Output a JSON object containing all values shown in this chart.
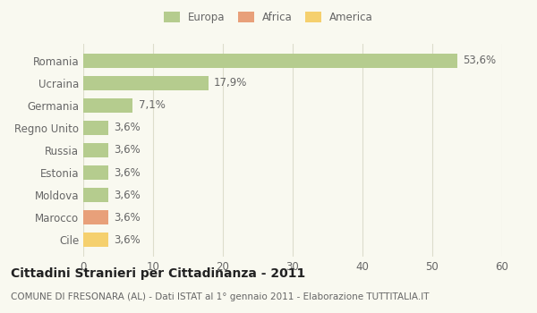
{
  "categories": [
    "Romania",
    "Ucraina",
    "Germania",
    "Regno Unito",
    "Russia",
    "Estonia",
    "Moldova",
    "Marocco",
    "Cile"
  ],
  "values": [
    53.6,
    17.9,
    7.1,
    3.6,
    3.6,
    3.6,
    3.6,
    3.6,
    3.6
  ],
  "labels": [
    "53,6%",
    "17,9%",
    "7,1%",
    "3,6%",
    "3,6%",
    "3,6%",
    "3,6%",
    "3,6%",
    "3,6%"
  ],
  "colors": [
    "#b5cc8e",
    "#b5cc8e",
    "#b5cc8e",
    "#b5cc8e",
    "#b5cc8e",
    "#b5cc8e",
    "#b5cc8e",
    "#e8a07a",
    "#f5d06e"
  ],
  "legend": [
    {
      "label": "Europa",
      "color": "#b5cc8e"
    },
    {
      "label": "Africa",
      "color": "#e8a07a"
    },
    {
      "label": "America",
      "color": "#f5d06e"
    }
  ],
  "xlim": [
    0,
    60
  ],
  "xticks": [
    0,
    10,
    20,
    30,
    40,
    50,
    60
  ],
  "title": "Cittadini Stranieri per Cittadinanza - 2011",
  "subtitle": "COMUNE DI FRESONARA (AL) - Dati ISTAT al 1° gennaio 2011 - Elaborazione TUTTITALIA.IT",
  "bg_color": "#f9f9f0",
  "grid_color": "#ddddcc",
  "bar_height": 0.65,
  "title_fontsize": 10,
  "subtitle_fontsize": 7.5,
  "tick_fontsize": 8.5,
  "label_fontsize": 8.5
}
